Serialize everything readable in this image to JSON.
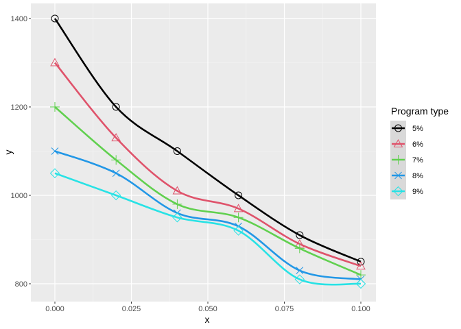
{
  "chart_data": {
    "type": "line",
    "title": "",
    "xlabel": "x",
    "ylabel": "y",
    "x": [
      0,
      0.02,
      0.04,
      0.06,
      0.08,
      0.1
    ],
    "xlim": [
      -0.0045,
      0.1045
    ],
    "ylim": [
      780,
      1415
    ],
    "xticks": [
      0,
      0.025,
      0.05,
      0.075,
      0.1
    ],
    "xtick_labels": [
      "0.000",
      "0.025",
      "0.050",
      "0.075",
      "0.100"
    ],
    "yticks": [
      800,
      1000,
      1200,
      1400
    ],
    "ytick_labels": [
      "800",
      "1000",
      "1200",
      "1400"
    ],
    "grid": true,
    "legend": {
      "title": "Program type",
      "position": "right"
    },
    "series": [
      {
        "name": "5%",
        "color": "#000000",
        "marker": "circle",
        "values": [
          1400,
          1200,
          1100,
          1000,
          910,
          850
        ]
      },
      {
        "name": "6%",
        "color": "#DF536B",
        "marker": "triangle",
        "values": [
          1300,
          1130,
          1010,
          970,
          890,
          840
        ]
      },
      {
        "name": "7%",
        "color": "#61D04F",
        "marker": "plus",
        "values": [
          1200,
          1080,
          980,
          950,
          880,
          820
        ]
      },
      {
        "name": "8%",
        "color": "#2297E6",
        "marker": "cross",
        "values": [
          1100,
          1050,
          960,
          930,
          830,
          810
        ]
      },
      {
        "name": "9%",
        "color": "#28E2E5",
        "marker": "diamond",
        "values": [
          1050,
          1000,
          950,
          920,
          810,
          800
        ]
      }
    ]
  }
}
